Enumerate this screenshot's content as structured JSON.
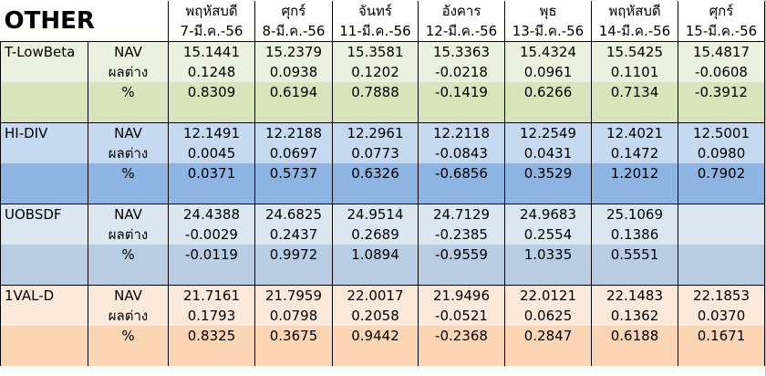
{
  "sheet": {
    "title": "OTHER",
    "row_labels": [
      "NAV",
      "ผลต่าง",
      "%"
    ],
    "columns": [
      {
        "day": "พฤหัสบดี",
        "date": "7-มี.ค.-56"
      },
      {
        "day": "ศุกร์",
        "date": "8-มี.ค.-56"
      },
      {
        "day": "จันทร์",
        "date": "11-มี.ค.-56"
      },
      {
        "day": "อังคาร",
        "date": "12-มี.ค.-56"
      },
      {
        "day": "พุธ",
        "date": "13-มี.ค.-56"
      },
      {
        "day": "พฤหัสบดี",
        "date": "14-มี.ค.-56"
      },
      {
        "day": "ศุกร์",
        "date": "15-มี.ค.-56"
      }
    ],
    "funds": [
      {
        "name": "T-LowBeta",
        "light": "#ebf1de",
        "dark": "#d8e4bc",
        "nav": [
          "15.1441",
          "15.2379",
          "15.3581",
          "15.3363",
          "15.4324",
          "15.5425",
          "15.4817"
        ],
        "diff": [
          "0.1248",
          "0.0938",
          "0.1202",
          "-0.0218",
          "0.0961",
          "0.1101",
          "-0.0608"
        ],
        "pct": [
          "0.8309",
          "0.6194",
          "0.7888",
          "-0.1419",
          "0.6266",
          "0.7134",
          "-0.3912"
        ]
      },
      {
        "name": "HI-DIV",
        "light": "#c5d9f1",
        "dark": "#8db4e2",
        "nav": [
          "12.1491",
          "12.2188",
          "12.2961",
          "12.2118",
          "12.2549",
          "12.4021",
          "12.5001"
        ],
        "diff": [
          "0.0045",
          "0.0697",
          "0.0773",
          "-0.0843",
          "0.0431",
          "0.1472",
          "0.0980"
        ],
        "pct": [
          "0.0371",
          "0.5737",
          "0.6326",
          "-0.6856",
          "0.3529",
          "1.2012",
          "0.7902"
        ]
      },
      {
        "name": "UOBSDF",
        "light": "#dce6f1",
        "dark": "#b8cce4",
        "nav": [
          "24.4388",
          "24.6825",
          "24.9514",
          "24.7129",
          "24.9683",
          "25.1069",
          ""
        ],
        "diff": [
          "-0.0029",
          "0.2437",
          "0.2689",
          "-0.2385",
          "0.2554",
          "0.1386",
          ""
        ],
        "pct": [
          "-0.0119",
          "0.9972",
          "1.0894",
          "-0.9559",
          "1.0335",
          "0.5551",
          ""
        ]
      },
      {
        "name": "1VAL-D",
        "light": "#fde9d9",
        "dark": "#fcd5b4",
        "nav": [
          "21.7161",
          "21.7959",
          "22.0017",
          "21.9496",
          "22.0121",
          "22.1483",
          "22.1853"
        ],
        "diff": [
          "0.1793",
          "0.0798",
          "0.2058",
          "-0.0521",
          "0.0625",
          "0.1362",
          "0.0370"
        ],
        "pct": [
          "0.8325",
          "0.3675",
          "0.9442",
          "-0.2368",
          "0.2847",
          "0.6188",
          "0.1671"
        ]
      }
    ]
  }
}
